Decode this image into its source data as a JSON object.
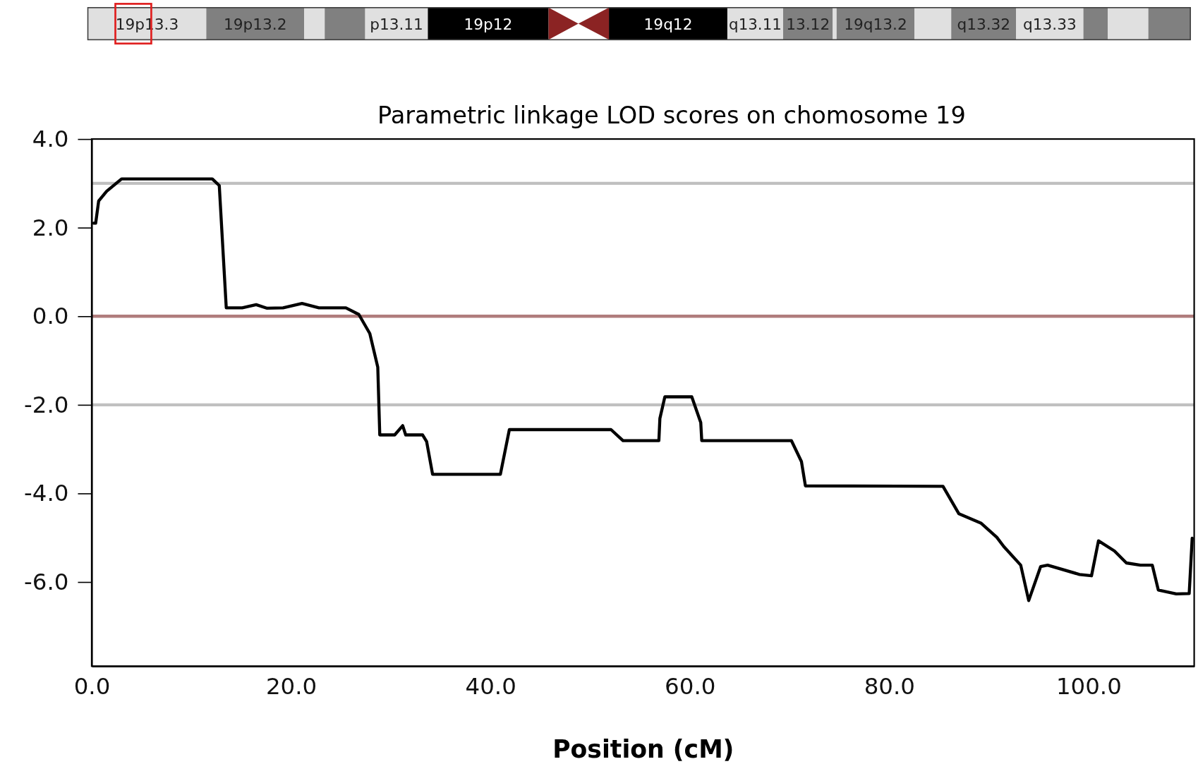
{
  "chart_data": {
    "type": "line",
    "title": "Parametric linkage LOD scores on chomosome 19",
    "xlabel": "Position (cM)",
    "annotations": [
      "19p13.3",
      "19p13.2",
      "p13.11",
      "19p12",
      "19q12",
      "q13.11",
      "13.12",
      "19q13.2",
      "q13.32",
      "q13.33"
    ],
    "xlim": [
      0,
      110.6
    ],
    "ylim": [
      -7.9,
      4.0
    ],
    "xticks": [
      {
        "value": 0,
        "label": "0.0"
      },
      {
        "value": 20,
        "label": "20.0"
      },
      {
        "value": 40,
        "label": "40.0"
      },
      {
        "value": 60,
        "label": "60.0"
      },
      {
        "value": 80,
        "label": "80.0"
      },
      {
        "value": 100,
        "label": "100.0"
      }
    ],
    "yticks": [
      {
        "value": 4,
        "label": "4.0"
      },
      {
        "value": 2,
        "label": "2.0"
      },
      {
        "value": 0,
        "label": "0.0"
      },
      {
        "value": -2,
        "label": "-2.0"
      },
      {
        "value": -4,
        "label": "-4.0"
      },
      {
        "value": -6,
        "label": "-6.0"
      }
    ],
    "ref_lines": [
      {
        "axis": "y",
        "value": 3,
        "color": "#c0c0c0"
      },
      {
        "axis": "y",
        "value": 0,
        "color": "#b07c7c"
      },
      {
        "axis": "y",
        "value": -2,
        "color": "#c0c0c0"
      }
    ],
    "grid": false,
    "marker": "none",
    "line_style": "solid",
    "series": [
      {
        "color": "#000000",
        "x": [
          0.2,
          0.4,
          0.7,
          1.5,
          3.0,
          12.1,
          12.8,
          13.5,
          15.1,
          16.5,
          17.6,
          19.2,
          21.1,
          22.8,
          25.5,
          26.8,
          27.9,
          28.7,
          28.9,
          30.4,
          31.2,
          31.5,
          33.2,
          33.6,
          34.2,
          41.0,
          41.9,
          52.1,
          53.3,
          56.9,
          57.0,
          57.5,
          60.2,
          61.1,
          61.2,
          70.2,
          71.2,
          71.6,
          85.4,
          87.0,
          89.2,
          90.8,
          91.5,
          93.2,
          94.0,
          95.2,
          95.9,
          99.1,
          100.3,
          101.0,
          102.6,
          103.8,
          105.2,
          106.4,
          107.0,
          108.8,
          110.1,
          110.4
        ],
        "values": [
          2.1,
          2.1,
          2.6,
          2.82,
          3.1,
          3.1,
          2.95,
          0.19,
          0.19,
          0.26,
          0.18,
          0.19,
          0.29,
          0.19,
          0.19,
          0.04,
          -0.39,
          -1.15,
          -2.68,
          -2.68,
          -2.47,
          -2.68,
          -2.68,
          -2.83,
          -3.57,
          -3.57,
          -2.56,
          -2.56,
          -2.81,
          -2.81,
          -2.31,
          -1.82,
          -1.82,
          -2.4,
          -2.81,
          -2.81,
          -3.28,
          -3.83,
          -3.84,
          -4.46,
          -4.67,
          -4.99,
          -5.2,
          -5.62,
          -6.42,
          -5.65,
          -5.62,
          -5.83,
          -5.86,
          -5.07,
          -5.3,
          -5.57,
          -5.62,
          -5.62,
          -6.18,
          -6.27,
          -6.26,
          -5.01
        ]
      }
    ]
  }
}
